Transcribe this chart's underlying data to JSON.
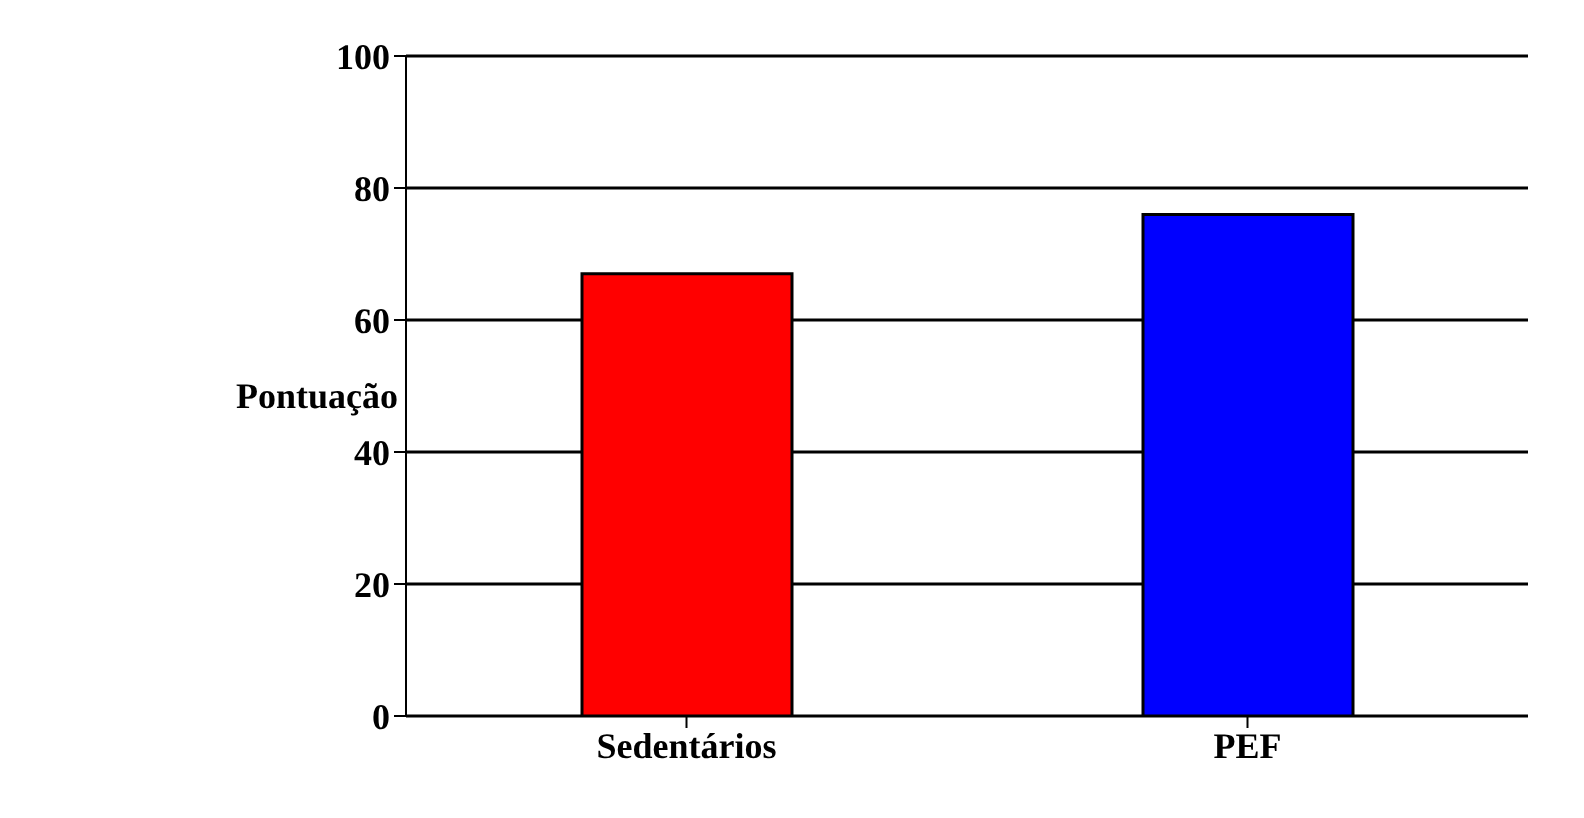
{
  "chart_data": {
    "type": "bar",
    "ylabel": "Pontuação",
    "categories": [
      "Sedentários",
      "PEF"
    ],
    "values": [
      67,
      76
    ],
    "colors": [
      "#ff0000",
      "#0000ff"
    ],
    "ylim": [
      0,
      100
    ],
    "yticks": [
      0,
      20,
      40,
      60,
      80,
      100
    ],
    "grid": "y"
  }
}
